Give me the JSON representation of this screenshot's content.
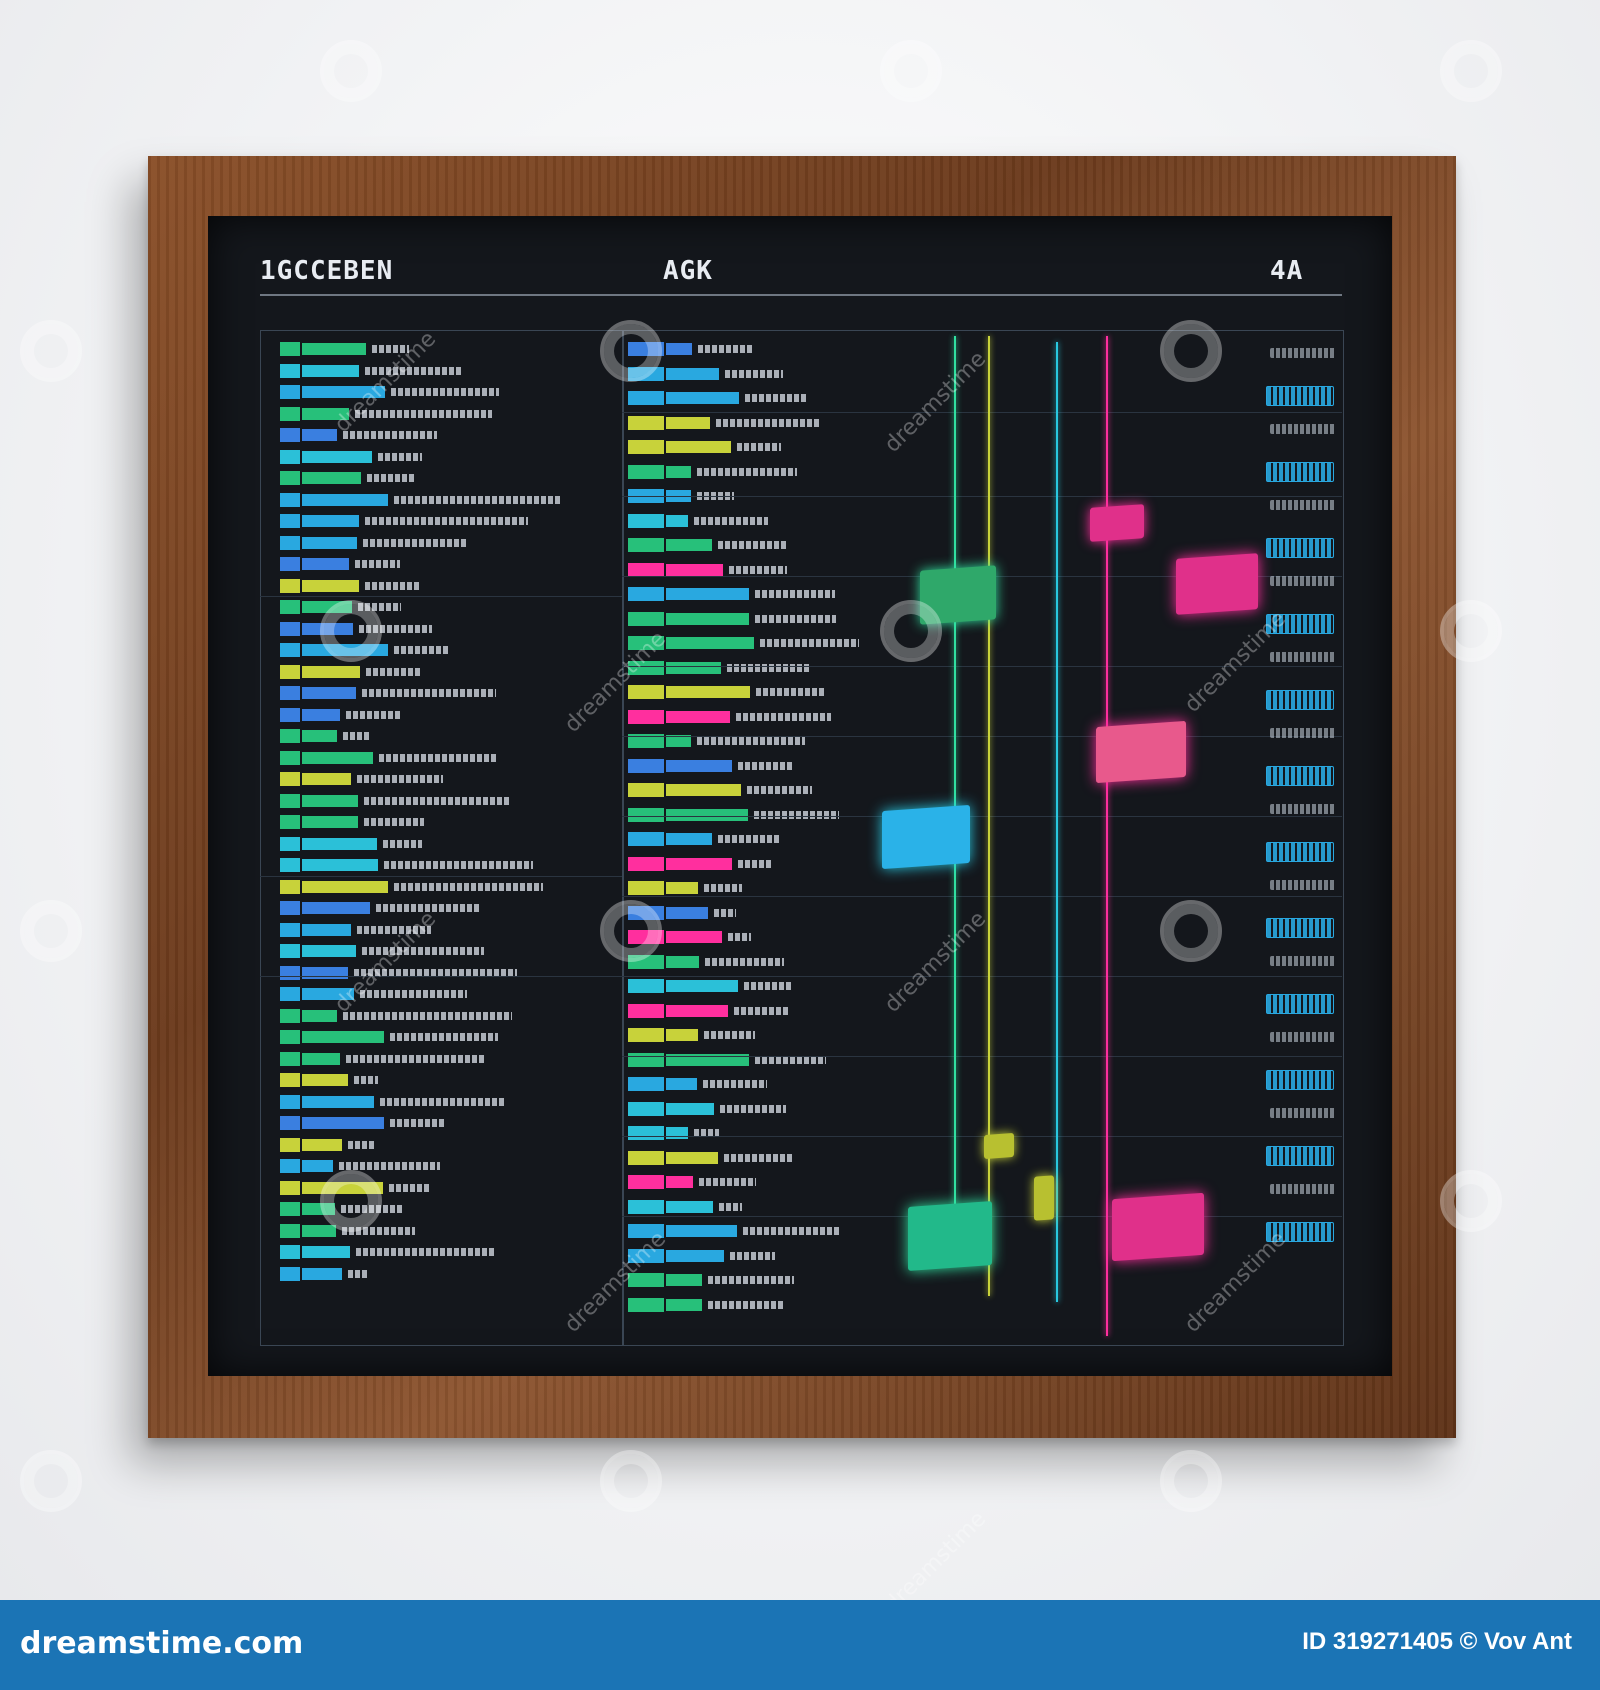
{
  "board": {
    "header_left": "1GCCEBEN",
    "header_center": "AGK",
    "header_right": "4A"
  },
  "footer": {
    "site": "dreamstime.com",
    "image_id": "ID 319271405 © Vov Ant"
  },
  "watermark": {
    "text": "dreamstime"
  },
  "colors": {
    "frame_wood": "#7a4522",
    "board_bg": "#14171c",
    "cyan": "#29a8e0",
    "green": "#27c07a",
    "magenta": "#ff2f9e",
    "yellow": "#c8d23a",
    "footer_blue": "#1b74b5"
  }
}
